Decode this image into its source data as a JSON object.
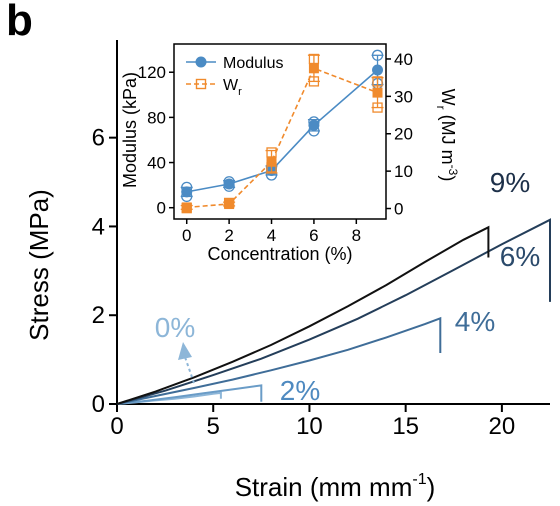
{
  "panel_label": "b",
  "chart_data": [
    {
      "type": "line",
      "xlabel": "Strain (mm mm",
      "xlabel_sup": "-1",
      "xlabel_close": ")",
      "ylabel": "Stress (MPa)",
      "xlim": [
        0,
        22.5
      ],
      "ylim": [
        0,
        8.2
      ],
      "xticks": [
        0,
        5,
        10,
        15,
        20
      ],
      "yticks": [
        0,
        2,
        4,
        6
      ],
      "grid": false,
      "series": [
        {
          "name": "0%",
          "color": "#8db6d8",
          "label_color": "#8db6d8",
          "x": [
            0,
            1,
            2,
            3,
            4,
            5,
            5.4
          ],
          "y": [
            0,
            0.04,
            0.08,
            0.12,
            0.17,
            0.23,
            0.25
          ],
          "fracture_to": 0.12
        },
        {
          "name": "2%",
          "color": "#6a9cc7",
          "label_color": "#4f8ac0",
          "x": [
            0,
            1.5,
            3,
            4.5,
            6,
            7.5
          ],
          "y": [
            0,
            0.07,
            0.15,
            0.24,
            0.33,
            0.42
          ],
          "fracture_to": 0.05
        },
        {
          "name": "4%",
          "color": "#3f6d98",
          "label_color": "#3f6d98",
          "x": [
            0,
            2,
            4,
            6,
            8,
            10,
            12,
            14,
            16,
            16.8
          ],
          "y": [
            0,
            0.18,
            0.36,
            0.55,
            0.76,
            0.98,
            1.22,
            1.5,
            1.8,
            1.93
          ],
          "fracture_to": 1.15
        },
        {
          "name": "6%",
          "color": "#243e5a",
          "label_color": "#2b4a6b",
          "x": [
            0,
            2.5,
            5,
            7.5,
            10,
            12.5,
            15,
            17.5,
            20,
            22.5
          ],
          "y": [
            0,
            0.3,
            0.65,
            1.02,
            1.45,
            1.92,
            2.45,
            3.02,
            3.6,
            4.15
          ],
          "fracture_to": 2.3
        },
        {
          "name": "9%",
          "color": "#111111",
          "label_color": "#1d3049",
          "x": [
            0,
            2,
            4,
            6,
            8,
            10,
            12,
            14,
            16,
            18,
            19.3
          ],
          "y": [
            0,
            0.28,
            0.6,
            0.95,
            1.33,
            1.75,
            2.2,
            2.68,
            3.2,
            3.7,
            3.98
          ],
          "fracture_to": 3.3
        }
      ]
    },
    {
      "type": "line",
      "xlabel": "Concentration (%)",
      "ylabel": "Modulus (kPa)",
      "y2label_main": "W",
      "y2label_sub": "r",
      "y2label_unit": " (MJ m",
      "y2label_sup": "-3",
      "y2label_close": ")",
      "xlim": [
        -0.6,
        9.4
      ],
      "ylim": [
        -10,
        145
      ],
      "y2lim": [
        -2.8,
        44
      ],
      "xticks": [
        0,
        2,
        4,
        6,
        8
      ],
      "yticks": [
        0,
        40,
        80,
        120
      ],
      "y2ticks": [
        0,
        10,
        20,
        30,
        40
      ],
      "legend_position": "top-left",
      "series": [
        {
          "name": "Modulus",
          "axis": "left",
          "color": "#4b8bc4",
          "marker": "circle",
          "line": "solid",
          "x": [
            0,
            2,
            4,
            6,
            9
          ],
          "y": [
            14,
            21,
            33,
            73,
            122
          ],
          "err": [
            4,
            3,
            4,
            5,
            13
          ],
          "replicates": [
            [
              0,
              18
            ],
            [
              0,
              10
            ],
            [
              2,
              23
            ],
            [
              2,
              19
            ],
            [
              4,
              29
            ],
            [
              4,
              36
            ],
            [
              6,
              68
            ],
            [
              6,
              76
            ],
            [
              9,
              135
            ],
            [
              9,
              110
            ]
          ]
        },
        {
          "name": "Wr",
          "name_main": "W",
          "name_sub": "r",
          "axis": "right",
          "color": "#f08a2c",
          "marker": "square",
          "line": "dashed",
          "x": [
            0,
            2,
            4,
            6,
            9
          ],
          "y": [
            0.3,
            1.2,
            12.5,
            37.5,
            31
          ],
          "err": [
            0.5,
            0.5,
            3,
            3.5,
            4
          ],
          "replicates": [
            [
              0,
              0.1
            ],
            [
              2,
              1.5
            ],
            [
              4,
              15
            ],
            [
              4,
              11
            ],
            [
              6,
              40
            ],
            [
              6,
              34
            ],
            [
              9,
              27
            ],
            [
              9,
              34
            ]
          ]
        }
      ]
    }
  ]
}
